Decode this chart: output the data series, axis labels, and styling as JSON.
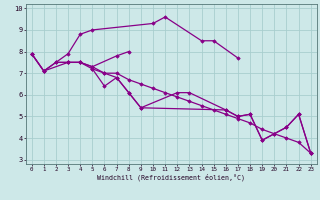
{
  "xlabel": "Windchill (Refroidissement éolien,°C)",
  "bg_color": "#cde8e8",
  "grid_color": "#a8cece",
  "line_color": "#880088",
  "xlim": [
    -0.5,
    23.5
  ],
  "ylim": [
    2.8,
    10.2
  ],
  "yticks": [
    3,
    4,
    5,
    6,
    7,
    8,
    9,
    10
  ],
  "xticks": [
    0,
    1,
    2,
    3,
    4,
    5,
    6,
    7,
    8,
    9,
    10,
    11,
    12,
    13,
    14,
    15,
    16,
    17,
    18,
    19,
    20,
    21,
    22,
    23
  ],
  "series": [
    {
      "x": [
        0,
        1,
        3,
        4,
        5,
        10,
        11,
        14,
        15,
        17
      ],
      "y": [
        7.9,
        7.1,
        7.9,
        8.8,
        9.0,
        9.3,
        9.6,
        8.5,
        8.5,
        7.7
      ]
    },
    {
      "x": [
        0,
        1,
        3,
        4,
        5,
        6,
        7,
        8,
        9,
        12,
        13,
        16,
        17,
        18,
        19,
        21,
        22,
        23
      ],
      "y": [
        7.9,
        7.1,
        7.5,
        7.5,
        7.2,
        7.0,
        6.8,
        6.1,
        5.4,
        6.1,
        6.1,
        5.3,
        5.0,
        5.1,
        3.9,
        4.5,
        5.1,
        3.3
      ]
    },
    {
      "x": [
        0,
        1,
        2,
        3,
        4,
        5,
        6,
        7,
        8,
        9,
        10,
        11,
        12,
        13,
        14,
        15,
        16,
        17,
        18,
        19,
        20,
        21,
        22,
        23
      ],
      "y": [
        7.9,
        7.1,
        7.5,
        7.5,
        7.5,
        7.3,
        7.0,
        7.0,
        6.7,
        6.5,
        6.3,
        6.1,
        5.9,
        5.7,
        5.5,
        5.3,
        5.1,
        4.9,
        4.7,
        4.4,
        4.2,
        4.0,
        3.8,
        3.3
      ]
    },
    {
      "x": [
        2,
        3,
        4,
        5,
        7,
        8
      ],
      "y": [
        7.5,
        7.5,
        7.5,
        7.3,
        7.8,
        8.0
      ]
    },
    {
      "x": [
        5,
        6,
        7,
        8,
        9,
        16,
        17,
        18,
        19,
        20,
        21,
        22,
        23
      ],
      "y": [
        7.2,
        6.4,
        6.8,
        6.1,
        5.4,
        5.3,
        5.0,
        5.1,
        3.9,
        4.2,
        4.5,
        5.1,
        3.3
      ]
    }
  ]
}
